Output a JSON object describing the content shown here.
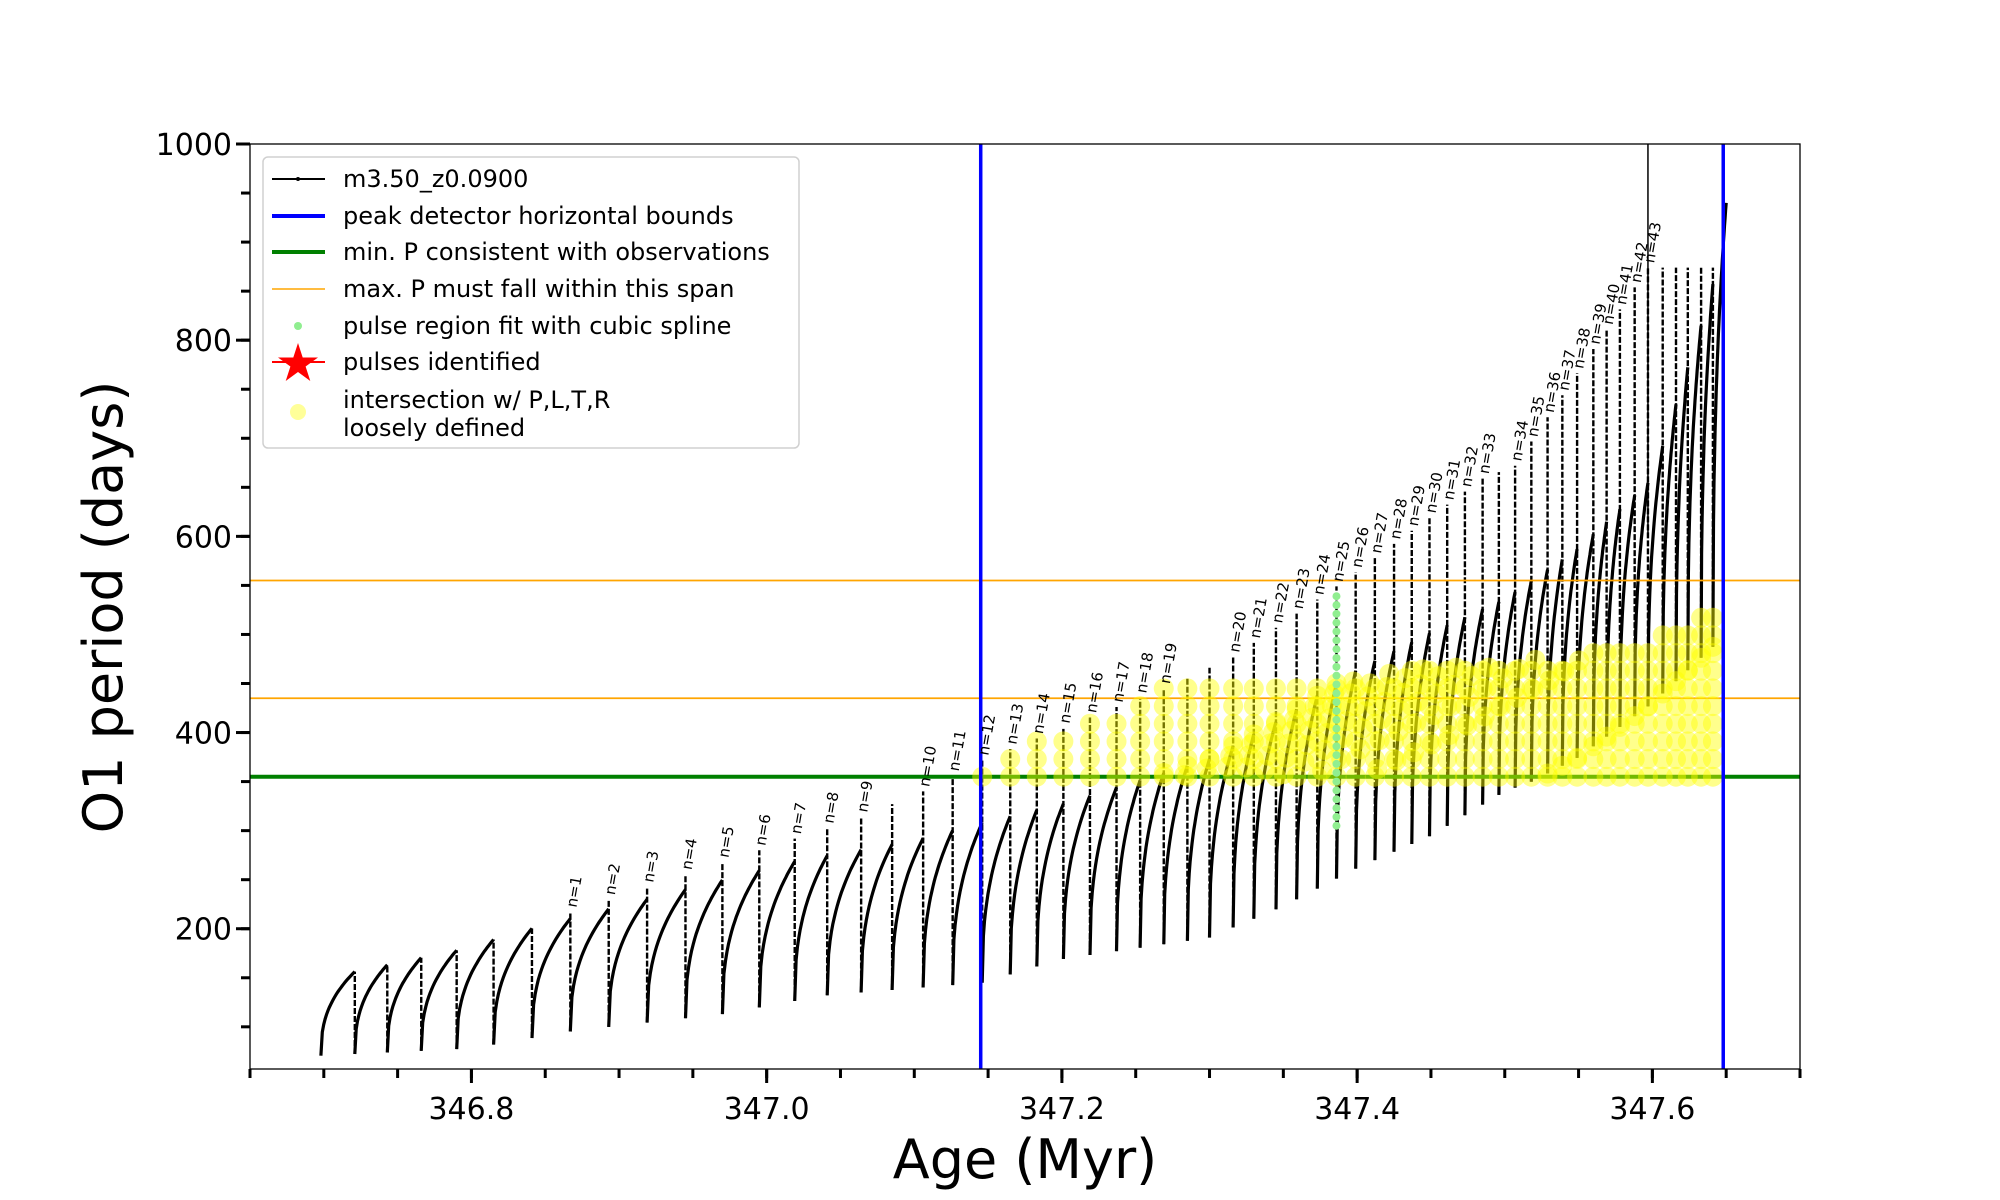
{
  "chart_data": {
    "type": "line",
    "xlabel": "Age (Myr)",
    "ylabel": "O1 period (days)",
    "xlim": [
      346.65,
      347.7
    ],
    "ylim": [
      57,
      1000
    ],
    "xticks": [
      346.8,
      347.0,
      347.2,
      347.4,
      347.6
    ],
    "xtick_labels": [
      "346.8",
      "347.0",
      "347.2",
      "347.4",
      "347.6"
    ],
    "xminor_step": 0.05,
    "yticks": [
      200,
      400,
      600,
      800,
      1000
    ],
    "ytick_labels": [
      "200",
      "400",
      "600",
      "800",
      "1000"
    ],
    "yminor_step": 50,
    "grid": false,
    "legend_position": "top-left",
    "legend": [
      {
        "label": "m3.50_z0.0900",
        "kind": "line-marker",
        "color": "#000000"
      },
      {
        "label": "peak detector horizontal bounds",
        "kind": "thick-line",
        "color": "#0000ff"
      },
      {
        "label": "min. P consistent with observations",
        "kind": "thick-line",
        "color": "#008000"
      },
      {
        "label": "max. P must fall within this span",
        "kind": "thin-line",
        "color": "#ffa500"
      },
      {
        "label": "pulse region fit with cubic spline",
        "kind": "dot",
        "color": "#90ee90"
      },
      {
        "label": "pulses identified",
        "kind": "star",
        "color": "#ff0000"
      },
      {
        "label": "intersection w/ P,L,T,R",
        "label2": "loosely defined",
        "kind": "circle",
        "color": "#ffff99"
      }
    ],
    "vlines": [
      347.145,
      347.648
    ],
    "hline_min_P": 355,
    "hlines_max_P_span": [
      435,
      555
    ],
    "series_name": "m3.50_z0.0900",
    "pulse_times": [
      346.698,
      346.721,
      346.743,
      346.766,
      346.79,
      346.815,
      346.841,
      346.867,
      346.893,
      346.919,
      346.945,
      346.97,
      346.995,
      347.019,
      347.041,
      347.064,
      347.085,
      347.106,
      347.126,
      347.146,
      347.165,
      347.183,
      347.201,
      347.219,
      347.237,
      347.253,
      347.269,
      347.285,
      347.3,
      347.316,
      347.33,
      347.345,
      347.359,
      347.373,
      347.386,
      347.399,
      347.412,
      347.425,
      347.437,
      347.449,
      347.461,
      347.473,
      347.485,
      347.496,
      347.507,
      347.518,
      347.529,
      347.539,
      347.549,
      347.56,
      347.569,
      347.578,
      347.588,
      347.597,
      347.607,
      347.616,
      347.624,
      347.633,
      347.641
    ],
    "plateau_envelope": [
      [
        346.69,
        150
      ],
      [
        346.72,
        156
      ],
      [
        346.79,
        178
      ],
      [
        346.84,
        200
      ],
      [
        346.945,
        240
      ],
      [
        347.02,
        269
      ],
      [
        347.1,
        290
      ],
      [
        347.146,
        308
      ],
      [
        347.2,
        327
      ],
      [
        347.25,
        350
      ],
      [
        347.3,
        373
      ],
      [
        347.35,
        415
      ],
      [
        347.4,
        464
      ],
      [
        347.45,
        502
      ],
      [
        347.5,
        536
      ],
      [
        347.55,
        588
      ],
      [
        347.6,
        659
      ],
      [
        347.64,
        848
      ],
      [
        347.65,
        940
      ]
    ],
    "min_envelope": [
      [
        346.69,
        70
      ],
      [
        346.8,
        78
      ],
      [
        346.87,
        96
      ],
      [
        346.97,
        113
      ],
      [
        347.04,
        132
      ],
      [
        347.146,
        145
      ],
      [
        347.2,
        169
      ],
      [
        347.3,
        191
      ],
      [
        347.35,
        223
      ],
      [
        347.4,
        262
      ],
      [
        347.45,
        295
      ],
      [
        347.5,
        340
      ],
      [
        347.52,
        351
      ],
      [
        347.55,
        375
      ],
      [
        347.6,
        430
      ],
      [
        347.65,
        500
      ]
    ],
    "spike_envelope": [
      [
        346.867,
        217
      ],
      [
        347.064,
        314
      ],
      [
        347.106,
        340
      ],
      [
        347.146,
        372
      ],
      [
        347.269,
        445
      ],
      [
        347.316,
        477
      ],
      [
        347.386,
        549
      ],
      [
        347.485,
        659
      ],
      [
        347.507,
        672
      ],
      [
        347.597,
        874
      ]
    ],
    "spike_start_t": 346.867,
    "pulse_labels": [
      {
        "text": "n=1",
        "t": 346.867
      },
      {
        "text": "n=2",
        "t": 346.893
      },
      {
        "text": "n=3",
        "t": 346.919
      },
      {
        "text": "n=4",
        "t": 346.945
      },
      {
        "text": "n=5",
        "t": 346.97
      },
      {
        "text": "n=6",
        "t": 346.995
      },
      {
        "text": "n=7",
        "t": 347.019
      },
      {
        "text": "n=8",
        "t": 347.041
      },
      {
        "text": "n=9",
        "t": 347.064
      },
      {
        "text": "n=10",
        "t": 347.106
      },
      {
        "text": "n=11",
        "t": 347.126
      },
      {
        "text": "n=12",
        "t": 347.146
      },
      {
        "text": "n=13",
        "t": 347.165
      },
      {
        "text": "n=14",
        "t": 347.183
      },
      {
        "text": "n=15",
        "t": 347.201
      },
      {
        "text": "n=16",
        "t": 347.219
      },
      {
        "text": "n=17",
        "t": 347.237
      },
      {
        "text": "n=18",
        "t": 347.253
      },
      {
        "text": "n=19",
        "t": 347.269
      },
      {
        "text": "n=20",
        "t": 347.316
      },
      {
        "text": "n=21",
        "t": 347.33
      },
      {
        "text": "n=22",
        "t": 347.345
      },
      {
        "text": "n=23",
        "t": 347.359
      },
      {
        "text": "n=24",
        "t": 347.373
      },
      {
        "text": "n=25",
        "t": 347.386
      },
      {
        "text": "n=26",
        "t": 347.399
      },
      {
        "text": "n=27",
        "t": 347.412
      },
      {
        "text": "n=28",
        "t": 347.425
      },
      {
        "text": "n=29",
        "t": 347.437
      },
      {
        "text": "n=30",
        "t": 347.449
      },
      {
        "text": "n=31",
        "t": 347.461
      },
      {
        "text": "n=32",
        "t": 347.473
      },
      {
        "text": "n=33",
        "t": 347.485
      },
      {
        "text": "n=34",
        "t": 347.507
      },
      {
        "text": "n=35",
        "t": 347.518
      },
      {
        "text": "n=36",
        "t": 347.529
      },
      {
        "text": "n=37",
        "t": 347.539
      },
      {
        "text": "n=38",
        "t": 347.549
      },
      {
        "text": "n=39",
        "t": 347.56
      },
      {
        "text": "n=40",
        "t": 347.569
      },
      {
        "text": "n=41",
        "t": 347.578
      },
      {
        "text": "n=42",
        "t": 347.588
      },
      {
        "text": "n=43",
        "t": 347.597
      }
    ],
    "intersection_upper_envelope": [
      [
        347.14,
        450
      ],
      [
        347.4,
        460
      ],
      [
        347.45,
        465
      ],
      [
        347.5,
        470
      ],
      [
        347.55,
        480
      ],
      [
        347.6,
        500
      ],
      [
        347.65,
        535
      ]
    ],
    "intersection_lower_P": 355,
    "spline_fit": {
      "t": 347.386,
      "P_range": [
        305,
        540
      ]
    }
  }
}
